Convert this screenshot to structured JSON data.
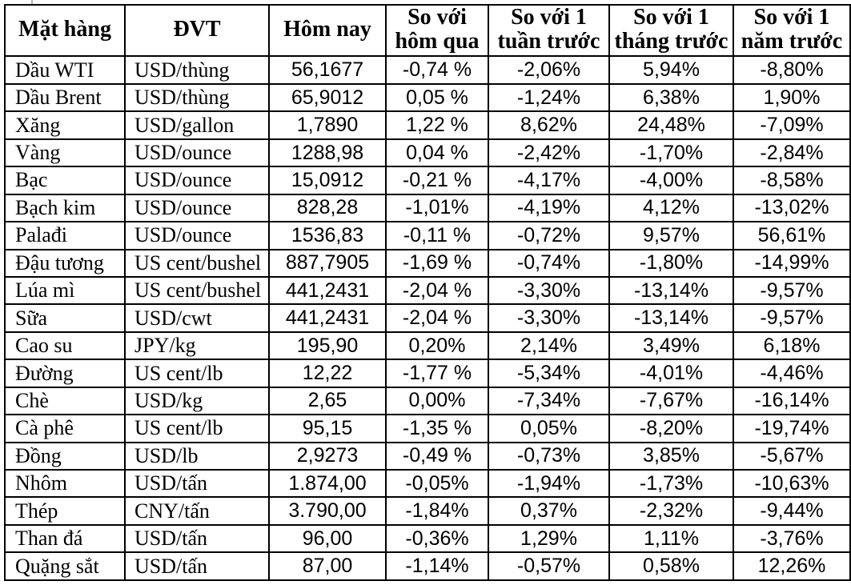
{
  "theme": {
    "background_color": "#ffffff",
    "border_color": "#000000",
    "text_color": "#000000"
  },
  "table": {
    "columns": [
      {
        "key": "commodity",
        "label": "Mặt hàng"
      },
      {
        "key": "unit",
        "label": "ĐVT"
      },
      {
        "key": "today",
        "label": "Hôm nay"
      },
      {
        "key": "vs-yesterday",
        "label": "So với\nhôm qua"
      },
      {
        "key": "vs-week",
        "label": "So với 1\ntuần trước"
      },
      {
        "key": "vs-month",
        "label": "So với 1\ntháng trước"
      },
      {
        "key": "vs-year",
        "label": "So với 1\nnăm trước"
      }
    ],
    "rows": [
      [
        "Dầu WTI",
        "USD/thùng",
        "56,1677",
        "-0,74 %",
        "-2,06%",
        "5,94%",
        "-8,80%"
      ],
      [
        "Dầu Brent",
        "USD/thùng",
        "65,9012",
        "0,05 %",
        "-1,24%",
        "6,38%",
        "1,90%"
      ],
      [
        "Xăng",
        "USD/gallon",
        "1,7890",
        "1,22 %",
        "8,62%",
        "24,48%",
        "-7,09%"
      ],
      [
        "Vàng",
        "USD/ounce",
        "1288,98",
        "0,04 %",
        "-2,42%",
        "-1,70%",
        "-2,84%"
      ],
      [
        "Bạc",
        "USD/ounce",
        "15,0912",
        "-0,21 %",
        "-4,17%",
        "-4,00%",
        "-8,58%"
      ],
      [
        "Bạch kim",
        "USD/ounce",
        "828,28",
        "-1,01%",
        "-4,19%",
        "4,12%",
        "-13,02%"
      ],
      [
        "Palađi",
        "USD/ounce",
        "1536,83",
        "-0,11 %",
        "-0,72%",
        "9,57%",
        "56,61%"
      ],
      [
        "Đậu tương",
        "US cent/bushel",
        "887,7905",
        "-1,69 %",
        "-0,74%",
        "-1,80%",
        "-14,99%"
      ],
      [
        "Lúa mì",
        "US cent/bushel",
        "441,2431",
        "-2,04 %",
        "-3,30%",
        "-13,14%",
        "-9,57%"
      ],
      [
        "Sữa",
        "USD/cwt",
        "441,2431",
        "-2,04 %",
        "-3,30%",
        "-13,14%",
        "-9,57%"
      ],
      [
        "Cao su",
        "JPY/kg",
        "195,90",
        "0,20%",
        "2,14%",
        "3,49%",
        "6,18%"
      ],
      [
        "Đường",
        "US cent/lb",
        "12,22",
        "-1,77 %",
        "-5,34%",
        "-4,01%",
        "-4,46%"
      ],
      [
        "Chè",
        "USD/kg",
        "2,65",
        "0,00%",
        "-7,34%",
        "-7,67%",
        "-16,14%"
      ],
      [
        "Cà phê",
        "US cent/lb",
        "95,15",
        "-1,35 %",
        "0,05%",
        "-8,20%",
        "-19,74%"
      ],
      [
        "Đồng",
        "USD/lb",
        "2,9273",
        "-0,49 %",
        "-0,73%",
        "3,85%",
        "-5,67%"
      ],
      [
        "Nhôm",
        "USD/tấn",
        "1.874,00",
        "-0,05%",
        "-1,94%",
        "-1,73%",
        "-10,63%"
      ],
      [
        "Thép",
        "CNY/tấn",
        "3.790,00",
        "-1,84%",
        "0,37%",
        "-2,32%",
        "-9,44%"
      ],
      [
        "Than đá",
        "USD/tấn",
        "96,00",
        "-0,36%",
        "1,29%",
        "1,11%",
        "-3,76%"
      ],
      [
        "Quặng sắt",
        "USD/tấn",
        "87,00",
        "-1,14%",
        "-0,57%",
        "0,58%",
        "12,26%"
      ]
    ]
  }
}
